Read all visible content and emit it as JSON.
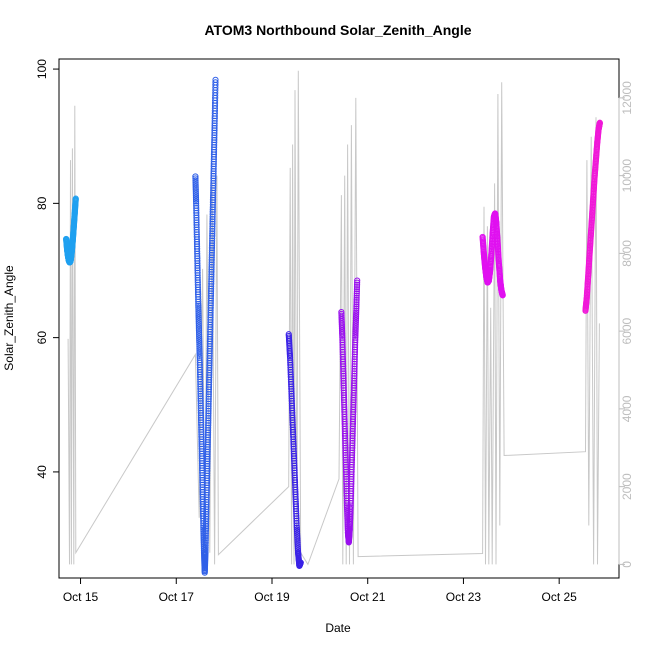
{
  "chart_data": {
    "type": "scatter",
    "title": "ATOM3 Northbound Solar_Zenith_Angle",
    "xlabel": "Date",
    "ylabel": "Solar_Zenith_Angle",
    "xlim": [
      14.55,
      26.25
    ],
    "ylim": [
      24.2,
      101.5
    ],
    "y2lim": [
      -350,
      13000
    ],
    "x_ticks": [
      {
        "value": 15,
        "label": "Oct 15"
      },
      {
        "value": 17,
        "label": "Oct 17"
      },
      {
        "value": 19,
        "label": "Oct 19"
      },
      {
        "value": 21,
        "label": "Oct 21"
      },
      {
        "value": 23,
        "label": "Oct 23"
      },
      {
        "value": 25,
        "label": "Oct 25"
      }
    ],
    "y_ticks": [
      40,
      60,
      80,
      100
    ],
    "y2_ticks": [
      0,
      2000,
      4000,
      6000,
      8000,
      10000,
      12000
    ],
    "colors": {
      "background_line": "#c8c8c8",
      "right_axis": "#bdbdbd",
      "segments": [
        "#1fa0f0",
        "#3060e8",
        "#3a22e6",
        "#9a10ee",
        "#e010f0",
        "#f018d8"
      ]
    },
    "grid": false,
    "segments": [
      {
        "start": 14.7,
        "end": 14.9,
        "y": [
          74.7,
          73.2,
          72.2,
          71.5,
          71.2,
          71.4,
          72.3,
          73.6,
          75.2,
          77.0,
          78.8,
          80.7
        ]
      },
      {
        "start": 17.4,
        "end": 17.82,
        "y": [
          84.0,
          80.0,
          75.0,
          70.0,
          65.0,
          61.0,
          57.0,
          52.0,
          47.0,
          42.0,
          37.0,
          32.0,
          28.0,
          25.0,
          28.0,
          33.0,
          38.0,
          43.0,
          48.0,
          53.0,
          58.0,
          63.0,
          68.0,
          73.0,
          78.0,
          83.0,
          88.0,
          93.0,
          98.4
        ]
      },
      {
        "start": 19.35,
        "end": 19.6,
        "y": [
          60.5,
          57.0,
          52.0,
          47.0,
          42.0,
          37.0,
          32.0,
          28.0,
          26.0,
          26.5
        ]
      },
      {
        "start": 20.45,
        "end": 20.78,
        "y": [
          63.8,
          60.0,
          55.0,
          50.0,
          45.0,
          40.0,
          35.0,
          31.0,
          29.5,
          31.5,
          35.0,
          40.0,
          45.0,
          50.0,
          55.0,
          60.0,
          64.0,
          68.5
        ]
      },
      {
        "start": 23.4,
        "end": 23.82,
        "y": [
          75.0,
          72.5,
          70.5,
          69.0,
          68.2,
          68.5,
          70.0,
          72.5,
          75.5,
          78.0,
          78.5,
          77.0,
          74.0,
          71.0,
          68.5,
          67.0,
          66.3
        ]
      },
      {
        "start": 25.55,
        "end": 25.85,
        "y": [
          64.0,
          66.0,
          69.0,
          72.0,
          75.0,
          78.0,
          81.0,
          84.0,
          86.5,
          89.0,
          91.0,
          92.0
        ]
      }
    ],
    "background_series": {
      "axis": "right",
      "points": [
        [
          14.74,
          5800
        ],
        [
          14.77,
          0
        ],
        [
          14.79,
          10400
        ],
        [
          14.81,
          0
        ],
        [
          14.83,
          10700
        ],
        [
          14.86,
          0
        ],
        [
          14.88,
          11800
        ],
        [
          14.9,
          300
        ],
        [
          17.4,
          5400
        ],
        [
          17.48,
          1200
        ],
        [
          17.55,
          7600
        ],
        [
          17.6,
          0
        ],
        [
          17.64,
          9000
        ],
        [
          17.7,
          300
        ],
        [
          17.75,
          9800
        ],
        [
          17.8,
          0
        ],
        [
          17.85,
          10000
        ],
        [
          17.88,
          250
        ],
        [
          19.35,
          2000
        ],
        [
          19.38,
          10200
        ],
        [
          19.41,
          0
        ],
        [
          19.43,
          10800
        ],
        [
          19.46,
          0
        ],
        [
          19.48,
          12200
        ],
        [
          19.52,
          0
        ],
        [
          19.55,
          12700
        ],
        [
          19.6,
          300
        ],
        [
          19.75,
          0
        ],
        [
          20.4,
          2200
        ],
        [
          20.45,
          9500
        ],
        [
          20.48,
          0
        ],
        [
          20.52,
          10000
        ],
        [
          20.55,
          0
        ],
        [
          20.58,
          10800
        ],
        [
          20.62,
          0
        ],
        [
          20.66,
          11300
        ],
        [
          20.7,
          0
        ],
        [
          20.75,
          12000
        ],
        [
          20.8,
          200
        ],
        [
          23.4,
          280
        ],
        [
          23.43,
          9200
        ],
        [
          23.46,
          0
        ],
        [
          23.5,
          8700
        ],
        [
          23.53,
          0
        ],
        [
          23.57,
          6600
        ],
        [
          23.6,
          0
        ],
        [
          23.65,
          9800
        ],
        [
          23.68,
          0
        ],
        [
          23.72,
          12100
        ],
        [
          23.76,
          1000
        ],
        [
          23.8,
          12400
        ],
        [
          23.85,
          2800
        ],
        [
          25.55,
          2900
        ],
        [
          25.58,
          10400
        ],
        [
          25.62,
          1000
        ],
        [
          25.67,
          11000
        ],
        [
          25.72,
          0
        ],
        [
          25.77,
          11500
        ],
        [
          25.8,
          0
        ],
        [
          25.84,
          6200
        ]
      ]
    }
  }
}
